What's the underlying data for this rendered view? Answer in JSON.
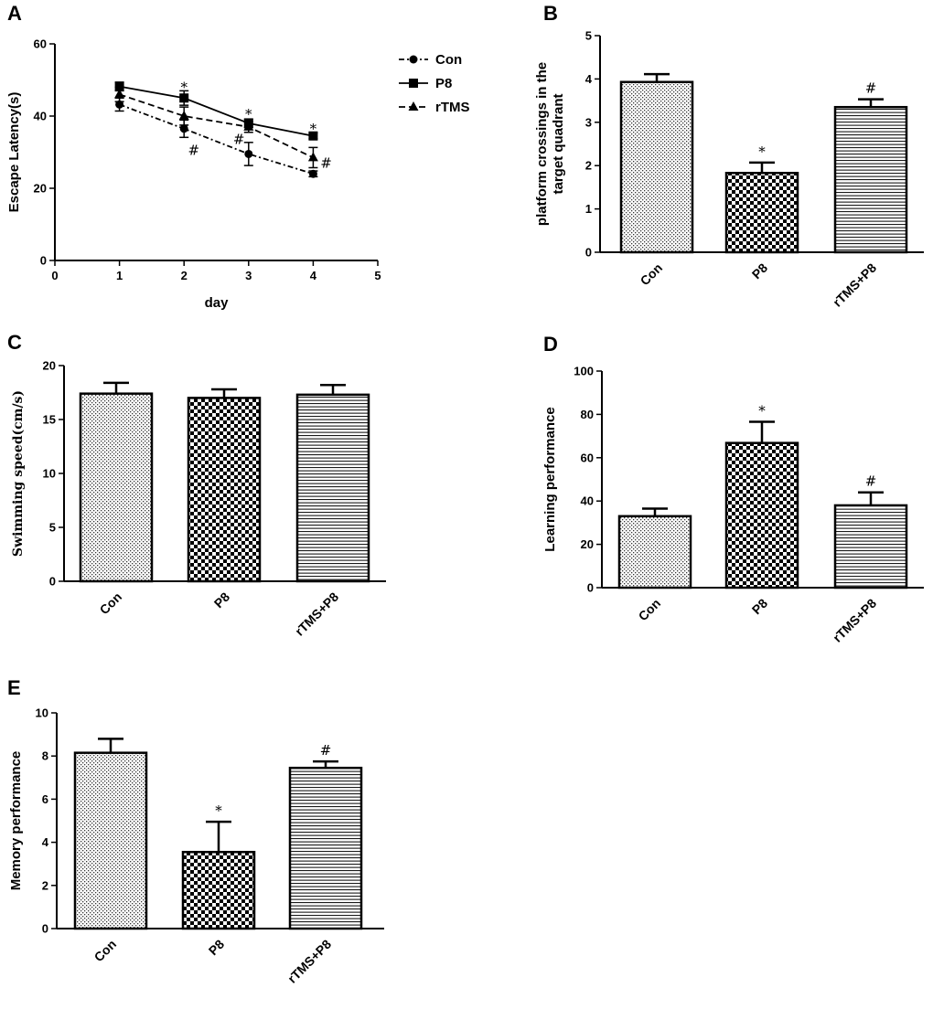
{
  "chart_data": [
    {
      "panel": "A",
      "type": "line",
      "title": "",
      "xlabel": "day",
      "ylabel": "Escape Latency(s)",
      "xlim": [
        0,
        5
      ],
      "ylim": [
        0,
        60
      ],
      "xticks": [
        0,
        1,
        2,
        3,
        4,
        5
      ],
      "yticks": [
        0,
        20,
        40,
        60
      ],
      "x": [
        1,
        2,
        3,
        4
      ],
      "series": [
        {
          "name": "Con",
          "marker": "circle",
          "dash": "dashdot",
          "values": [
            43.2,
            36.5,
            29.5,
            24.0
          ],
          "err": [
            1.8,
            2.4,
            3.2,
            0.8
          ]
        },
        {
          "name": "P8",
          "marker": "square",
          "dash": "solid",
          "values": [
            48.2,
            45.0,
            38.0,
            34.5
          ],
          "err": [
            1.2,
            2.0,
            1.2,
            0.8
          ]
        },
        {
          "name": "rTMS",
          "marker": "triangle",
          "dash": "dash",
          "values": [
            46.0,
            40.0,
            37.0,
            28.5
          ],
          "err": [
            2.0,
            2.5,
            1.5,
            2.8
          ]
        }
      ],
      "annotations": [
        {
          "x": 2,
          "y": 48.0,
          "text": "*"
        },
        {
          "x": 3,
          "y": 40.5,
          "text": "*"
        },
        {
          "x": 4,
          "y": 36.5,
          "text": "*"
        },
        {
          "x": 2.15,
          "y": 30.5,
          "text": "#"
        },
        {
          "x": 2.85,
          "y": 33.5,
          "text": "#"
        },
        {
          "x": 4.2,
          "y": 27.0,
          "text": "#"
        }
      ]
    },
    {
      "panel": "B",
      "type": "bar",
      "title": "",
      "xlabel": "",
      "ylabel": "platform crossings in the target quadrant",
      "ylabel_lines": [
        "platform crossings in the",
        "target quadrant"
      ],
      "ylim": [
        0,
        5
      ],
      "yticks": [
        0,
        1,
        2,
        3,
        4,
        5
      ],
      "categories": [
        "Con",
        "P8",
        "rTMS+P8"
      ],
      "values": [
        3.93,
        1.83,
        3.35
      ],
      "err": [
        0.18,
        0.24,
        0.18
      ],
      "labels": [
        "",
        "*",
        "#"
      ]
    },
    {
      "panel": "C",
      "type": "bar",
      "title": "",
      "xlabel": "",
      "ylabel": "Swimming speed(cm/s)",
      "ylim": [
        0,
        20
      ],
      "yticks": [
        0,
        5,
        10,
        15,
        20
      ],
      "categories": [
        "Con",
        "P8",
        "rTMS+P8"
      ],
      "values": [
        17.4,
        17.0,
        17.3
      ],
      "err": [
        1.0,
        0.8,
        0.9
      ],
      "labels": [
        "",
        "",
        ""
      ]
    },
    {
      "panel": "D",
      "type": "bar",
      "title": "",
      "xlabel": "",
      "ylabel": "Learning performance",
      "ylim": [
        0,
        100
      ],
      "yticks": [
        0,
        20,
        40,
        60,
        80,
        100
      ],
      "categories": [
        "Con",
        "P8",
        "rTMS+P8"
      ],
      "values": [
        33.0,
        66.8,
        38.0
      ],
      "err": [
        3.5,
        9.8,
        6.0
      ],
      "labels": [
        "",
        "*",
        "#"
      ]
    },
    {
      "panel": "E",
      "type": "bar",
      "title": "",
      "xlabel": "",
      "ylabel": "Memory performance",
      "ylim": [
        0,
        10
      ],
      "yticks": [
        0,
        2,
        4,
        6,
        8,
        10
      ],
      "categories": [
        "Con",
        "P8",
        "rTMS+P8"
      ],
      "values": [
        8.15,
        3.55,
        7.45
      ],
      "err": [
        0.65,
        1.4,
        0.3
      ],
      "labels": [
        "",
        "*",
        "#"
      ]
    }
  ]
}
